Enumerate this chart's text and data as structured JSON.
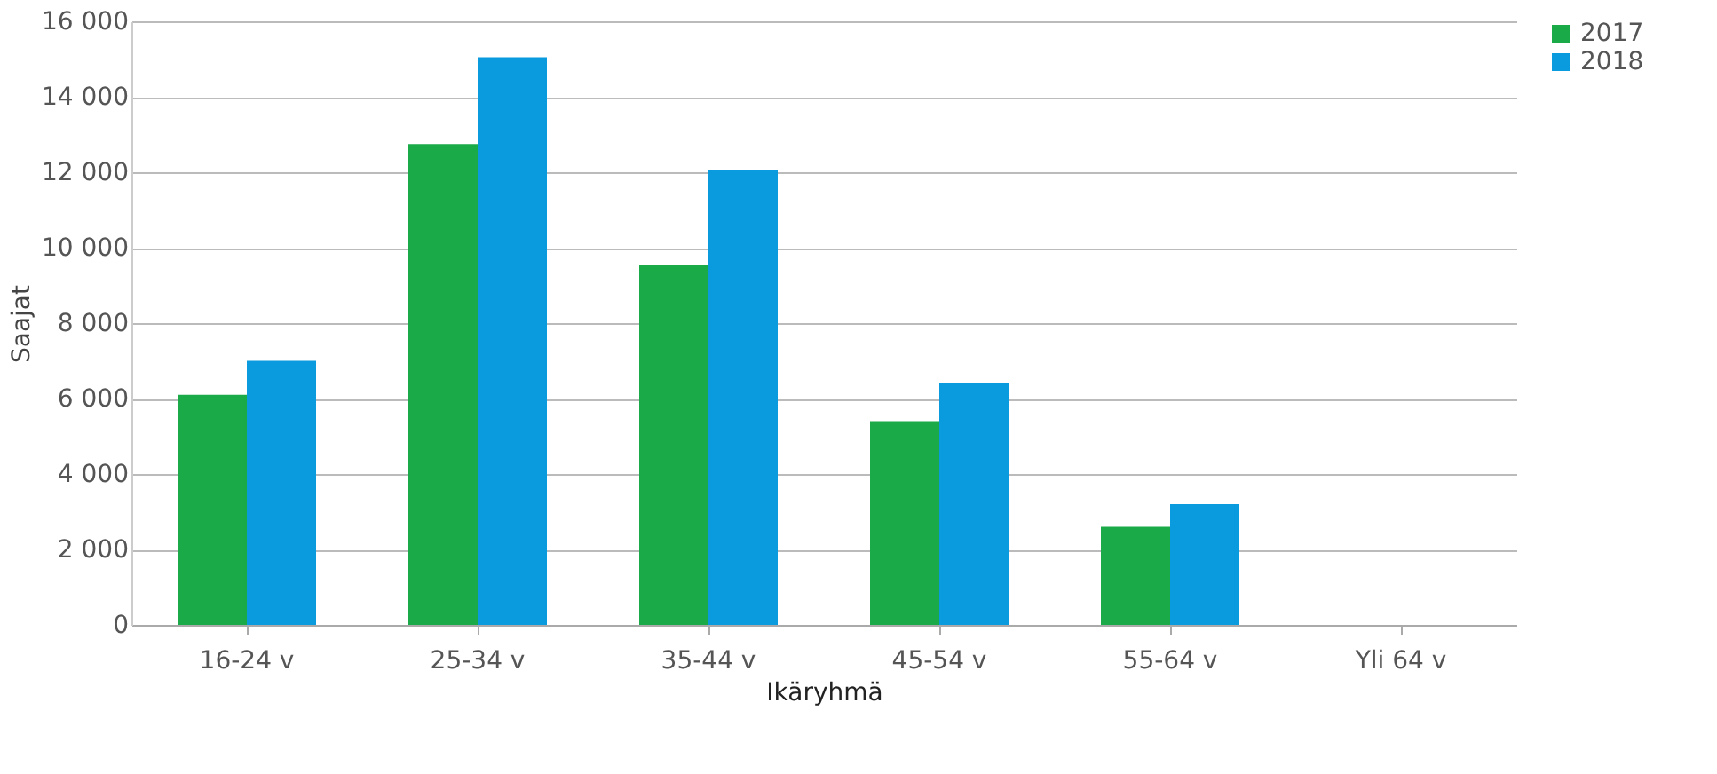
{
  "chart_data": {
    "type": "bar",
    "xlabel": "Ikäryhmä",
    "ylabel": "Saajat",
    "categories": [
      "16-24 v",
      "25-34 v",
      "35-44 v",
      "45-54 v",
      "55-64 v",
      "Yli 64 v"
    ],
    "series": [
      {
        "name": "2017",
        "color": "#1aaa48",
        "values": [
          6100,
          12750,
          9550,
          5400,
          2600,
          0
        ]
      },
      {
        "name": "2018",
        "color": "#0a9ade",
        "values": [
          7000,
          15050,
          12050,
          6400,
          3200,
          0
        ]
      }
    ],
    "ylim": [
      0,
      16000
    ],
    "yticks": [
      0,
      {
        "value": 2000,
        "label": "2 000"
      },
      {
        "value": 4000,
        "label": "4 000"
      },
      {
        "value": 6000,
        "label": "6 000"
      },
      {
        "value": 8000,
        "label": "8 000"
      },
      {
        "value": 10000,
        "label": "10 000"
      },
      {
        "value": 12000,
        "label": "12 000"
      },
      {
        "value": 14000,
        "label": "14 000"
      },
      {
        "value": 16000,
        "label": "16 000"
      }
    ],
    "grid": "y",
    "legend": "right"
  }
}
